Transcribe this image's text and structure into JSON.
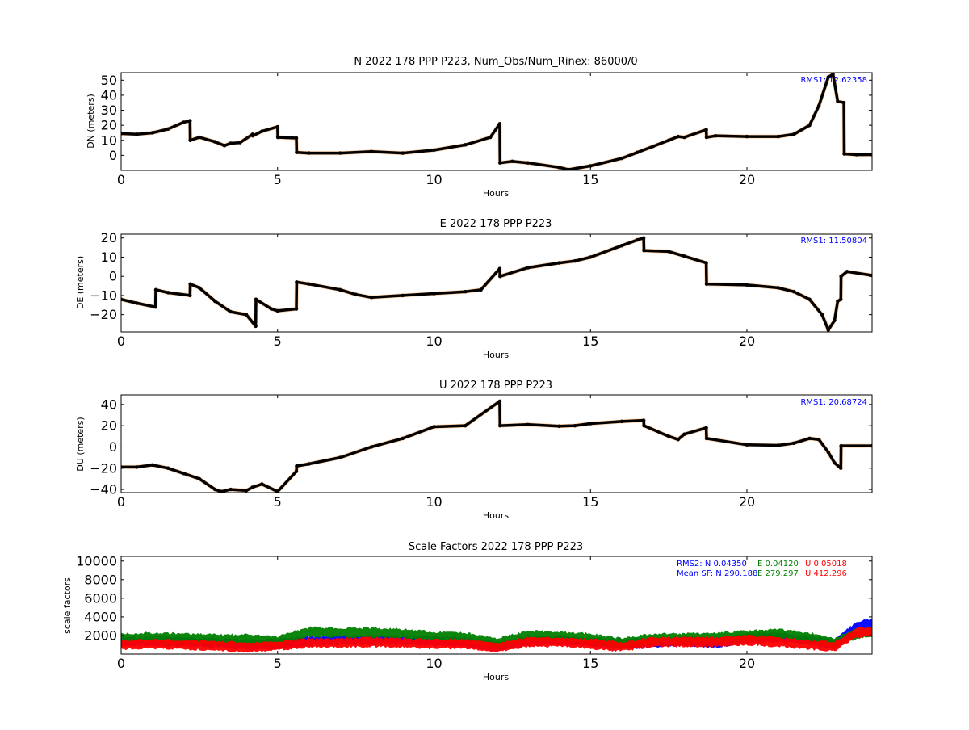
{
  "figure": {
    "background": "#ffffff"
  },
  "chart_data": [
    {
      "type": "scatter",
      "title": "N 2022 178 PPP  P223, Num_Obs/Num_Rinex: 86000/0",
      "xlabel": "Hours",
      "ylabel": "DN (meters)",
      "xlim": [
        0,
        24
      ],
      "ylim": [
        -10,
        55
      ],
      "xticks": [
        "0",
        "5",
        "10",
        "15",
        "20"
      ],
      "yticks": [
        "0",
        "10",
        "20",
        "30",
        "40",
        "50"
      ],
      "annotations": [
        {
          "text": "RMS1: 12.62358",
          "color": "#0000ff"
        }
      ],
      "x": [
        0,
        0.5,
        1.0,
        1.5,
        2.0,
        2.2,
        2.21,
        2.5,
        3.0,
        3.3,
        3.5,
        3.8,
        4.2,
        4.21,
        4.5,
        5.0,
        5.01,
        5.6,
        5.61,
        6.0,
        7.0,
        8.0,
        9.0,
        10.0,
        11.0,
        11.8,
        12.1,
        12.11,
        12.5,
        13.0,
        14.0,
        14.3,
        15.0,
        16.0,
        16.5,
        17.0,
        17.5,
        17.8,
        18.0,
        18.7,
        18.71,
        19.0,
        20.0,
        21.0,
        21.5,
        22.0,
        22.3,
        22.6,
        22.75,
        22.9,
        23.1,
        23.11,
        23.5,
        24.0
      ],
      "series": [
        {
          "color": "#000000",
          "outlier_color": "#ff7f0e",
          "values": [
            14.5,
            14,
            15,
            17.5,
            22,
            23,
            10,
            12,
            9,
            6.5,
            8,
            8.5,
            14,
            13,
            16,
            19,
            12,
            11.5,
            2,
            1.5,
            1.5,
            2.5,
            1.5,
            3.5,
            7,
            12,
            21,
            -5,
            -4,
            -5,
            -8,
            -9.5,
            -7,
            -2,
            2,
            6,
            10,
            12.5,
            12,
            17,
            12,
            13,
            12.5,
            12.5,
            14,
            20,
            33,
            52,
            54,
            36,
            35,
            1,
            0.5,
            0.5
          ]
        }
      ]
    },
    {
      "type": "scatter",
      "title": "E 2022 178 PPP  P223",
      "xlabel": "Hours",
      "ylabel": "DE (meters)",
      "xlim": [
        0,
        24
      ],
      "ylim": [
        -29,
        22
      ],
      "xticks": [
        "0",
        "5",
        "10",
        "15",
        "20"
      ],
      "yticks": [
        "−20",
        "−10",
        "0",
        "10",
        "20"
      ],
      "annotations": [
        {
          "text": "RMS1: 11.50804",
          "color": "#0000ff"
        }
      ],
      "x": [
        0,
        0.5,
        1.1,
        1.11,
        1.5,
        2.2,
        2.21,
        2.5,
        3.0,
        3.5,
        4.0,
        4.3,
        4.31,
        4.8,
        5.0,
        5.6,
        5.61,
        6.0,
        7.0,
        7.5,
        8.0,
        9.0,
        10.0,
        11.0,
        11.5,
        12.1,
        12.11,
        13.0,
        14.0,
        14.5,
        15.0,
        16.0,
        16.5,
        16.7,
        16.71,
        17.5,
        18.0,
        18.7,
        18.71,
        20.0,
        21.0,
        21.5,
        22.0,
        22.4,
        22.6,
        22.8,
        22.9,
        23.0,
        23.01,
        23.2,
        24.0
      ],
      "series": [
        {
          "color": "#000000",
          "outlier_color": "#ff7f0e",
          "values": [
            -12,
            -14,
            -16,
            -7,
            -8.5,
            -10,
            -4,
            -6,
            -13,
            -18.5,
            -20,
            -26,
            -12,
            -17,
            -18,
            -17,
            -3,
            -4,
            -7,
            -9.5,
            -11,
            -10,
            -9,
            -8,
            -7,
            4,
            0,
            4.5,
            7,
            8,
            10,
            16,
            19,
            20,
            13.5,
            13,
            10.5,
            7,
            -4,
            -4.5,
            -6,
            -8,
            -12,
            -20,
            -28,
            -23,
            -13,
            -12,
            0,
            2.5,
            0.5
          ]
        }
      ]
    },
    {
      "type": "scatter",
      "title": "U 2022 178 PPP  P223",
      "xlabel": "Hours",
      "ylabel": "DU (meters)",
      "xlim": [
        0,
        24
      ],
      "ylim": [
        -43,
        49
      ],
      "xticks": [
        "0",
        "5",
        "10",
        "15",
        "20"
      ],
      "yticks": [
        "−40",
        "−20",
        "0",
        "20",
        "40"
      ],
      "annotations": [
        {
          "text": "RMS1: 20.68724",
          "color": "#0000ff"
        }
      ],
      "x": [
        0,
        0.5,
        1.0,
        1.5,
        2.0,
        2.5,
        3.0,
        3.2,
        3.5,
        4.0,
        4.2,
        4.5,
        5.0,
        5.6,
        5.61,
        6.0,
        7.0,
        8.0,
        9.0,
        10.0,
        11.0,
        12.1,
        12.11,
        13.0,
        14.0,
        14.5,
        15.0,
        16.0,
        16.7,
        16.71,
        17.5,
        17.8,
        18.0,
        18.7,
        18.71,
        20.0,
        21.0,
        21.5,
        22.0,
        22.3,
        22.6,
        22.8,
        23.0,
        23.01,
        24.0
      ],
      "series": [
        {
          "color": "#000000",
          "outlier_color": "#ff7f0e",
          "values": [
            -19,
            -19,
            -17,
            -20,
            -25,
            -30,
            -40,
            -42,
            -40,
            -41,
            -38,
            -35,
            -42,
            -23,
            -18,
            -16,
            -10,
            0,
            8,
            19,
            20,
            43,
            20,
            21,
            19.5,
            20,
            22,
            24,
            25,
            20,
            10,
            7,
            12,
            18,
            8,
            2,
            1.5,
            3.5,
            8,
            7,
            -5,
            -15,
            -20,
            1,
            1
          ]
        }
      ]
    },
    {
      "type": "scatter",
      "title": "Scale Factors 2022 178 PPP  P223",
      "xlabel": "Hours",
      "ylabel": "scale factors",
      "xlim": [
        0,
        24
      ],
      "ylim": [
        0,
        10500
      ],
      "xticks": [
        "0",
        "5",
        "10",
        "15",
        "20"
      ],
      "yticks": [
        "2000",
        "4000",
        "6000",
        "8000",
        "10000"
      ],
      "annotations": [
        {
          "text": "RMS2: N  0.04350",
          "color": "#0000ff"
        },
        {
          "text": "E  0.04120",
          "color": "#008000"
        },
        {
          "text": "U  0.05018",
          "color": "#ff0000"
        },
        {
          "text": "Mean SF: N 290.188",
          "color": "#0000ff"
        },
        {
          "text": "E 279.297",
          "color": "#008000"
        },
        {
          "text": "U 412.296",
          "color": "#ff0000"
        }
      ],
      "x": [
        0,
        1,
        2,
        3,
        4,
        5,
        6,
        7,
        8,
        9,
        10,
        11,
        12,
        13,
        14,
        15,
        16,
        17,
        18,
        19,
        20,
        21,
        22,
        22.8,
        23.5,
        24
      ],
      "series": [
        {
          "name": "N",
          "color": "#0000ff",
          "values": [
            1300,
            1400,
            1300,
            1200,
            1000,
            1100,
            1400,
            1500,
            1500,
            1500,
            1400,
            1300,
            800,
            1400,
            1500,
            1300,
            1100,
            1200,
            1400,
            1200,
            1700,
            1800,
            1500,
            1000,
            3000,
            3300
          ]
        },
        {
          "name": "E",
          "color": "#008000",
          "values": [
            1700,
            1800,
            1700,
            1600,
            1600,
            1400,
            2400,
            2300,
            2300,
            2200,
            1900,
            1800,
            1200,
            2000,
            1900,
            1700,
            1200,
            1700,
            1700,
            1800,
            2000,
            2200,
            1800,
            1200,
            2200,
            2400
          ]
        },
        {
          "name": "U",
          "color": "#ff0000",
          "values": [
            1000,
            1100,
            1000,
            900,
            700,
            900,
            1200,
            1200,
            1300,
            1200,
            1100,
            1100,
            700,
            1300,
            1300,
            1100,
            800,
            1300,
            1300,
            1300,
            1500,
            1300,
            1000,
            800,
            2300,
            2400
          ]
        }
      ]
    }
  ]
}
